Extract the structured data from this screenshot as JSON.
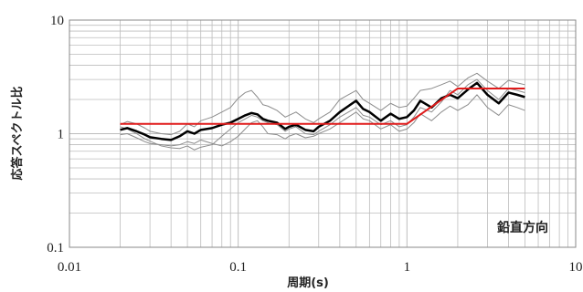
{
  "chart_data": {
    "type": "line",
    "xscale": "log",
    "yscale": "log",
    "xlim": [
      0.01,
      10
    ],
    "ylim": [
      0.1,
      10
    ],
    "xticks": [
      0.01,
      0.1,
      1,
      10
    ],
    "xtick_labels": [
      "0.01",
      "0.1",
      "1",
      "10"
    ],
    "yticks": [
      0.1,
      1,
      10
    ],
    "ytick_labels": [
      "0.1",
      "1",
      "10"
    ],
    "xlabel": "周期(s)",
    "ylabel": "応答スペクトル比",
    "annotation": "鉛直方向",
    "grid": true,
    "colors": {
      "mean": "#000000",
      "individual": "#8c8c8c",
      "model": "#e01b1b",
      "grid": "#bdbdbd",
      "frame": "#888888"
    },
    "series": [
      {
        "x": [
          0.02,
          0.022,
          0.025,
          0.028,
          0.03,
          0.035,
          0.04,
          0.045,
          0.05,
          0.055,
          0.06,
          0.07,
          0.08,
          0.09,
          0.1,
          0.11,
          0.12,
          0.13,
          0.14,
          0.15,
          0.17,
          0.19,
          0.2,
          0.22,
          0.25,
          0.28,
          0.3,
          0.35,
          0.4,
          0.45,
          0.5,
          0.55,
          0.6,
          0.7,
          0.8,
          0.9,
          1.0,
          1.1,
          1.2,
          1.4,
          1.6,
          1.8,
          2.0,
          2.3,
          2.6,
          3.0,
          3.5,
          4.0,
          4.5,
          5.0
        ],
        "values": [
          1.08,
          1.12,
          1.05,
          0.98,
          0.93,
          0.9,
          0.88,
          0.95,
          1.05,
          1.0,
          1.08,
          1.12,
          1.2,
          1.25,
          1.35,
          1.45,
          1.52,
          1.48,
          1.35,
          1.3,
          1.25,
          1.1,
          1.15,
          1.2,
          1.08,
          1.05,
          1.15,
          1.3,
          1.55,
          1.75,
          1.95,
          1.65,
          1.55,
          1.3,
          1.5,
          1.35,
          1.4,
          1.6,
          1.95,
          1.7,
          2.05,
          2.2,
          2.05,
          2.45,
          2.8,
          2.2,
          1.85,
          2.3,
          2.2,
          2.1
        ]
      },
      {
        "x": [
          0.02,
          0.022,
          0.025,
          0.028,
          0.03,
          0.035,
          0.04,
          0.045,
          0.05,
          0.055,
          0.06,
          0.07,
          0.08,
          0.09,
          0.1,
          0.11,
          0.12,
          0.13,
          0.14,
          0.15,
          0.17,
          0.19,
          0.2,
          0.22,
          0.25,
          0.28,
          0.3,
          0.35,
          0.4,
          0.45,
          0.5,
          0.55,
          0.6,
          0.7,
          0.8,
          0.9,
          1.0,
          1.1,
          1.2,
          1.4,
          1.6,
          1.8,
          2.0,
          2.3,
          2.6,
          3.0,
          3.5,
          4.0,
          4.5,
          5.0
        ],
        "values": [
          1.2,
          1.28,
          1.22,
          1.12,
          1.05,
          1.0,
          0.98,
          1.05,
          1.22,
          1.15,
          1.3,
          1.4,
          1.55,
          1.7,
          2.05,
          2.3,
          2.4,
          2.1,
          1.8,
          1.75,
          1.6,
          1.4,
          1.45,
          1.55,
          1.35,
          1.25,
          1.35,
          1.55,
          2.0,
          2.2,
          2.4,
          2.0,
          1.85,
          1.6,
          1.85,
          1.7,
          1.75,
          2.05,
          2.4,
          2.5,
          2.7,
          2.9,
          2.6,
          3.1,
          3.4,
          2.9,
          2.5,
          2.95,
          2.8,
          2.7
        ]
      },
      {
        "x": [
          0.02,
          0.022,
          0.025,
          0.028,
          0.03,
          0.035,
          0.04,
          0.045,
          0.05,
          0.055,
          0.06,
          0.07,
          0.08,
          0.09,
          0.1,
          0.11,
          0.12,
          0.13,
          0.14,
          0.15,
          0.17,
          0.19,
          0.2,
          0.22,
          0.25,
          0.28,
          0.3,
          0.35,
          0.4,
          0.45,
          0.5,
          0.55,
          0.6,
          0.7,
          0.8,
          0.9,
          1.0,
          1.1,
          1.2,
          1.4,
          1.6,
          1.8,
          2.0,
          2.3,
          2.6,
          3.0,
          3.5,
          4.0,
          4.5,
          5.0
        ],
        "values": [
          0.98,
          1.0,
          0.92,
          0.85,
          0.82,
          0.8,
          0.78,
          0.8,
          0.85,
          0.82,
          0.88,
          0.82,
          0.78,
          0.85,
          0.95,
          1.1,
          1.25,
          1.3,
          1.15,
          1.0,
          0.98,
          0.9,
          0.95,
          1.0,
          0.92,
          0.95,
          1.0,
          1.1,
          1.25,
          1.4,
          1.55,
          1.35,
          1.3,
          1.1,
          1.2,
          1.05,
          1.1,
          1.25,
          1.5,
          1.3,
          1.55,
          1.75,
          1.6,
          1.8,
          2.2,
          1.7,
          1.45,
          1.8,
          1.7,
          1.6
        ]
      },
      {
        "x": [
          0.02,
          0.022,
          0.025,
          0.028,
          0.03,
          0.035,
          0.04,
          0.045,
          0.05,
          0.055,
          0.06,
          0.07,
          0.08,
          0.09,
          0.1,
          0.11,
          0.12,
          0.13,
          0.14,
          0.15,
          0.17,
          0.19,
          0.2,
          0.22,
          0.25,
          0.28,
          0.3,
          0.35,
          0.4,
          0.45,
          0.5,
          0.55,
          0.6,
          0.7,
          0.8,
          0.9,
          1.0,
          1.1,
          1.2,
          1.4,
          1.6,
          1.8,
          2.0,
          2.3,
          2.6,
          3.0,
          3.5,
          4.0,
          4.5,
          5.0
        ],
        "values": [
          1.15,
          1.1,
          1.0,
          0.9,
          0.86,
          0.78,
          0.75,
          0.74,
          0.78,
          0.72,
          0.76,
          0.8,
          0.95,
          1.1,
          1.25,
          1.35,
          1.45,
          1.4,
          1.3,
          1.25,
          1.2,
          1.05,
          1.1,
          1.15,
          1.0,
          0.98,
          1.05,
          1.2,
          1.4,
          1.55,
          1.7,
          1.45,
          1.4,
          1.2,
          1.3,
          1.15,
          1.2,
          1.4,
          1.7,
          1.55,
          1.9,
          2.4,
          2.2,
          2.7,
          3.0,
          2.4,
          2.0,
          2.5,
          2.4,
          2.3
        ]
      },
      {
        "x": [
          0.02,
          1.0,
          2.0,
          5.0
        ],
        "values": [
          1.22,
          1.22,
          2.5,
          2.5
        ]
      }
    ]
  }
}
